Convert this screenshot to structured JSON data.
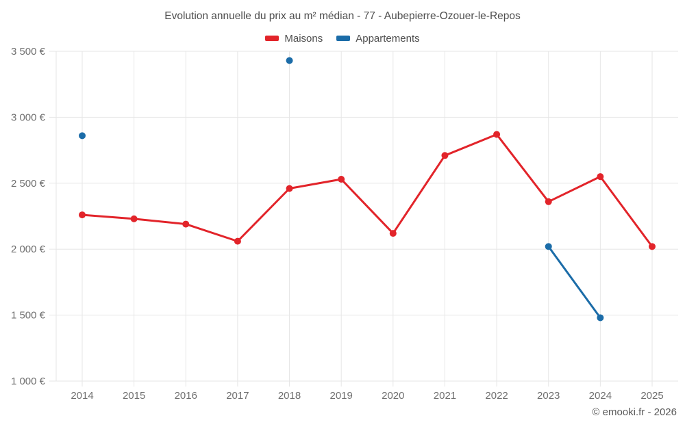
{
  "footer": {
    "copyright": "© emooki.fr - 2026"
  },
  "colors": {
    "maisons_red": "#e2242a",
    "appartements_blue": "#1b6ca8",
    "grid": "#e6e6e6",
    "title_text": "#4d4d4d",
    "tick_text": "#6f6f6f"
  },
  "chart_data": {
    "type": "line",
    "title": "Evolution annuelle du prix au m² médian - 77 - Aubepierre-Ozouer-le-Repos",
    "xlabel": "",
    "ylabel": "",
    "x": [
      2014,
      2015,
      2016,
      2017,
      2018,
      2019,
      2020,
      2021,
      2022,
      2023,
      2024,
      2025
    ],
    "ylim": [
      1000,
      3500
    ],
    "grid": true,
    "grid_color": "#e6e6e6",
    "legend_position": "top-center",
    "span_gaps": false,
    "yticks": [
      {
        "value": 1000,
        "label": "1 000 €"
      },
      {
        "value": 1500,
        "label": "1 500 €"
      },
      {
        "value": 2000,
        "label": "2 000 €"
      },
      {
        "value": 2500,
        "label": "2 500 €"
      },
      {
        "value": 3000,
        "label": "3 000 €"
      },
      {
        "value": 3500,
        "label": "3 500 €"
      }
    ],
    "series": [
      {
        "name": "Maisons",
        "color": "#e2242a",
        "values": [
          2260,
          2230,
          2190,
          2060,
          2460,
          2530,
          2120,
          2710,
          2870,
          2360,
          2550,
          2020
        ]
      },
      {
        "name": "Appartements",
        "color": "#1b6ca8",
        "values": [
          2860,
          null,
          null,
          null,
          3430,
          null,
          null,
          null,
          null,
          2020,
          1480,
          null
        ]
      }
    ]
  }
}
